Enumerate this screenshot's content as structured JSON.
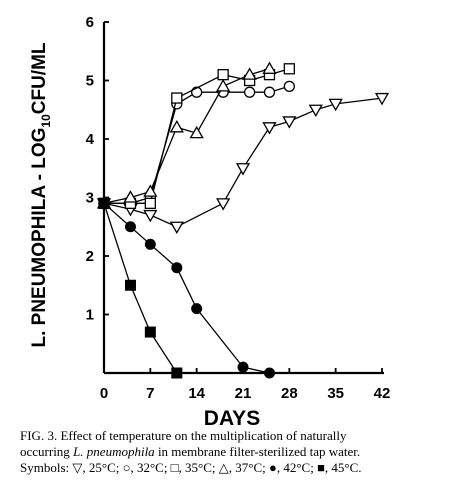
{
  "chart_data": {
    "type": "line",
    "xlabel": "DAYS",
    "ylabel_parts": {
      "prefix": "L. PNEUMOPHILA - LOG",
      "subscript": "10",
      "suffix": "CFU/ML"
    },
    "xlim": [
      0,
      42
    ],
    "ylim": [
      0,
      6
    ],
    "x_ticks": [
      "0",
      "7",
      "14",
      "21",
      "28",
      "35",
      "42"
    ],
    "y_ticks": [
      "1",
      "2",
      "3",
      "4",
      "5",
      "6"
    ],
    "series": [
      {
        "symbol": "triangle-down-open",
        "temperature": "25°C",
        "points": [
          [
            0,
            2.9
          ],
          [
            4,
            2.8
          ],
          [
            7,
            2.7
          ],
          [
            11,
            2.5
          ],
          [
            18,
            2.9
          ],
          [
            21,
            3.5
          ],
          [
            25,
            4.2
          ],
          [
            28,
            4.3
          ],
          [
            32,
            4.5
          ],
          [
            35,
            4.6
          ],
          [
            42,
            4.7
          ]
        ]
      },
      {
        "symbol": "circle-open",
        "temperature": "32°C",
        "points": [
          [
            0,
            2.9
          ],
          [
            4,
            2.9
          ],
          [
            7,
            3.0
          ],
          [
            11,
            4.6
          ],
          [
            14,
            4.8
          ],
          [
            18,
            4.8
          ],
          [
            22,
            4.8
          ],
          [
            25,
            4.8
          ],
          [
            28,
            4.9
          ]
        ]
      },
      {
        "symbol": "square-open",
        "temperature": "35°C",
        "points": [
          [
            0,
            2.9
          ],
          [
            4,
            2.9
          ],
          [
            7,
            2.9
          ],
          [
            11,
            4.7
          ],
          [
            18,
            5.1
          ],
          [
            22,
            5.0
          ],
          [
            25,
            5.1
          ],
          [
            28,
            5.2
          ]
        ]
      },
      {
        "symbol": "triangle-up-open",
        "temperature": "37°C",
        "points": [
          [
            0,
            2.9
          ],
          [
            4,
            3.0
          ],
          [
            7,
            3.1
          ],
          [
            11,
            4.2
          ],
          [
            14,
            4.1
          ],
          [
            18,
            4.9
          ],
          [
            22,
            5.1
          ],
          [
            25,
            5.2
          ]
        ]
      },
      {
        "symbol": "circle-filled",
        "temperature": "42°C",
        "points": [
          [
            0,
            2.9
          ],
          [
            4,
            2.5
          ],
          [
            7,
            2.2
          ],
          [
            11,
            1.8
          ],
          [
            14,
            1.1
          ],
          [
            21,
            0.1
          ],
          [
            25,
            0.0
          ]
        ]
      },
      {
        "symbol": "square-filled",
        "temperature": "45°C",
        "points": [
          [
            0,
            2.9
          ],
          [
            4,
            1.5
          ],
          [
            7,
            0.7
          ],
          [
            11,
            0.0
          ]
        ]
      }
    ]
  },
  "caption": {
    "line1": "FIG. 3.  Effect of temperature on the multiplication of naturally",
    "line2_pre": "occurring ",
    "line2_italic": "L. pneumophila",
    "line2_post": " in membrane filter-sterilized tap water.",
    "line3": "Symbols: ▽, 25°C; ○, 32°C; □, 35°C; △, 37°C; ●, 42°C; ■, 45°C."
  }
}
